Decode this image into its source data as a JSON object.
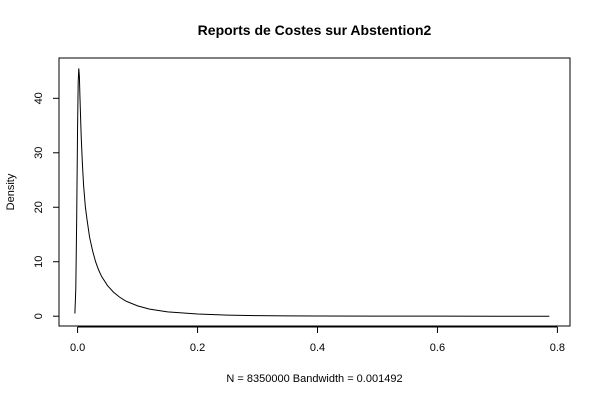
{
  "chart_data": {
    "type": "line",
    "title": "Reports de Costes sur Abstention2",
    "xlabel": "N = 8350000   Bandwidth = 0.001492",
    "ylabel": "Density",
    "xlim": [
      -0.031,
      0.821
    ],
    "ylim": [
      -1.8,
      47.4
    ],
    "x_ticks": [
      0.0,
      0.2,
      0.4,
      0.6,
      0.8
    ],
    "x_tick_labels": [
      "0.0",
      "0.2",
      "0.4",
      "0.6",
      "0.8"
    ],
    "y_ticks": [
      0,
      10,
      20,
      30,
      40
    ],
    "y_tick_labels": [
      "0",
      "10",
      "20",
      "30",
      "40"
    ],
    "grid": false,
    "series": [
      {
        "x": [
          -0.0045,
          -0.003,
          -0.0015,
          0.0,
          0.001,
          0.002,
          0.003,
          0.004,
          0.006,
          0.008,
          0.01,
          0.013,
          0.016,
          0.02,
          0.025,
          0.03,
          0.035,
          0.04,
          0.05,
          0.06,
          0.07,
          0.08,
          0.1,
          0.12,
          0.15,
          0.2,
          0.25,
          0.3,
          0.35,
          0.4,
          0.5,
          0.6,
          0.7,
          0.7865
        ],
        "y": [
          0.5,
          5.0,
          18.0,
          35.0,
          43.0,
          45.5,
          44.0,
          40.0,
          33.0,
          28.0,
          24.0,
          20.0,
          17.5,
          14.5,
          12.0,
          10.0,
          8.5,
          7.3,
          5.6,
          4.4,
          3.5,
          2.8,
          1.9,
          1.3,
          0.8,
          0.4,
          0.2,
          0.1,
          0.06,
          0.04,
          0.02,
          0.01,
          0.0,
          0.0
        ]
      }
    ]
  }
}
